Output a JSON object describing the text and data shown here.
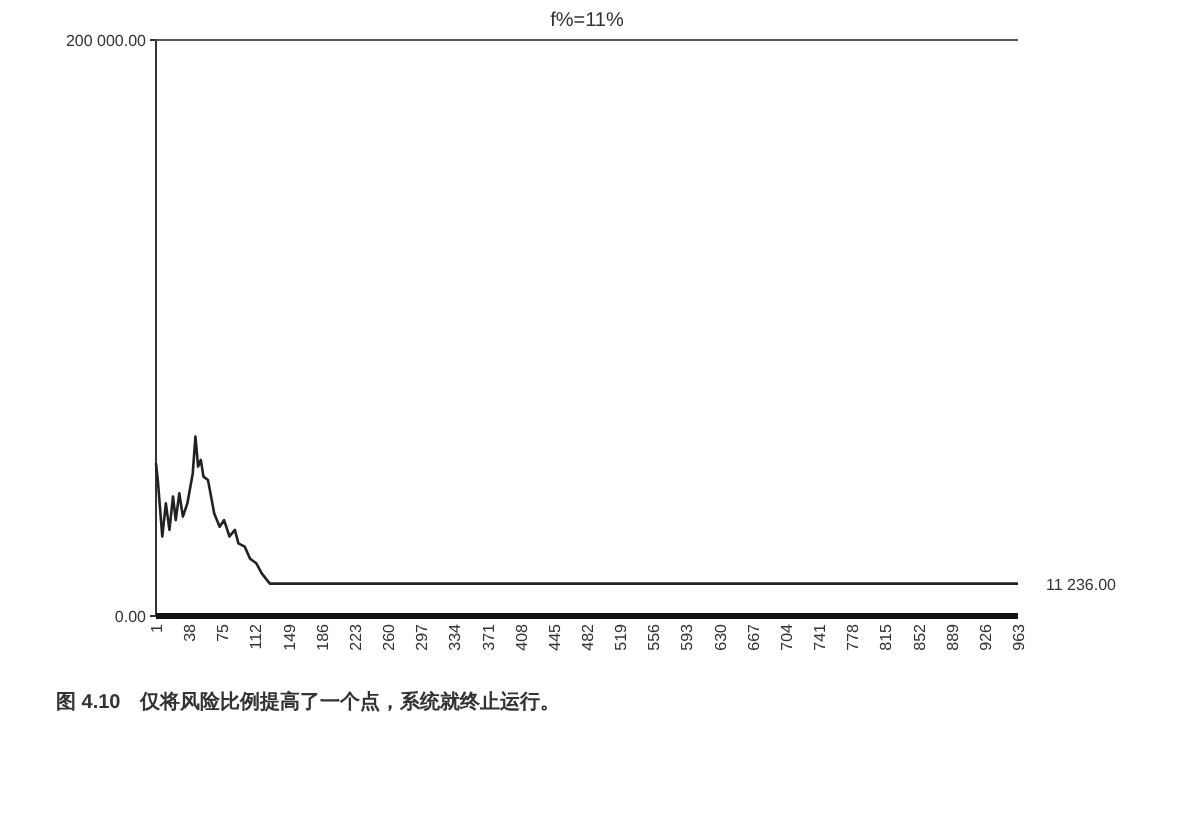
{
  "chart_data": {
    "type": "line",
    "title": "f%=11%",
    "x": [
      1,
      3,
      8,
      12,
      16,
      20,
      23,
      27,
      31,
      36,
      42,
      45,
      48,
      51,
      54,
      59,
      66,
      72,
      77,
      83,
      89,
      93,
      100,
      106,
      113,
      119,
      128,
      963
    ],
    "series": [
      {
        "color": "#222222",
        "values": [
          53000,
          47200,
          27600,
          39100,
          29900,
          41500,
          33300,
          42600,
          34500,
          39100,
          49500,
          62300,
          51900,
          54200,
          48400,
          47200,
          35600,
          31000,
          33300,
          27600,
          29900,
          25200,
          24100,
          19900,
          18300,
          14800,
          11236,
          11236
        ]
      }
    ],
    "xlim": [
      1,
      963
    ],
    "xticks": [
      1,
      38,
      75,
      112,
      149,
      186,
      223,
      260,
      297,
      334,
      371,
      408,
      445,
      482,
      519,
      556,
      593,
      630,
      667,
      704,
      741,
      778,
      815,
      852,
      889,
      926,
      963
    ],
    "ylim": [
      0,
      200000
    ],
    "yticks": [
      {
        "value": 0,
        "label": "0.00"
      },
      {
        "value": 200000,
        "label": "200 000.00"
      }
    ],
    "annotations": [
      {
        "text": "11 236.00",
        "x": 963,
        "y": 11236
      },
      "图 4.10　仅将风险比例提高了一个点，系统就终止运行。"
    ]
  }
}
